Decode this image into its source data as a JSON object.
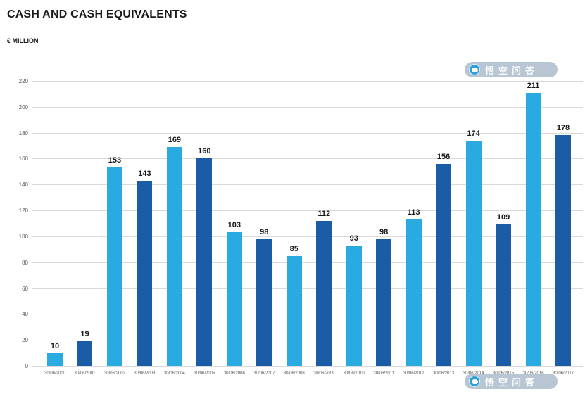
{
  "header": {
    "title": "CASH AND CASH EQUIVALENTS",
    "subtitle": "€ MILLION"
  },
  "colors": {
    "light_blue": "#29ABE2",
    "dark_blue": "#1A5DA6",
    "grid": "#d9d9d9",
    "text": "#1a1a1a"
  },
  "chart_data": {
    "type": "bar",
    "title": "CASH AND CASH EQUIVALENTS",
    "ylabel": "€ MILLION",
    "xlabel": "",
    "categories": [
      "30/06/2000",
      "30/06/2001",
      "30/06/2002",
      "30/06/2003",
      "30/06/2004",
      "30/06/2005",
      "30/06/2006",
      "30/06/2007",
      "30/06/2008",
      "30/06/2009",
      "30/06/2010",
      "30/06/2011",
      "30/06/2012",
      "30/06/2013",
      "30/06/2014",
      "30/06/2015",
      "30/06/2016",
      "30/06/2017"
    ],
    "values": [
      10,
      19,
      153,
      143,
      169,
      160,
      103,
      98,
      85,
      112,
      93,
      98,
      113,
      156,
      174,
      109,
      211,
      178
    ],
    "bar_color_pattern": [
      "light_blue",
      "dark_blue"
    ],
    "ylim": [
      0,
      220
    ],
    "ytick_step": 20,
    "grid": true,
    "legend_position": "none"
  },
  "watermark": {
    "text": "悟空问答",
    "icon": "wukong-logo-icon"
  }
}
